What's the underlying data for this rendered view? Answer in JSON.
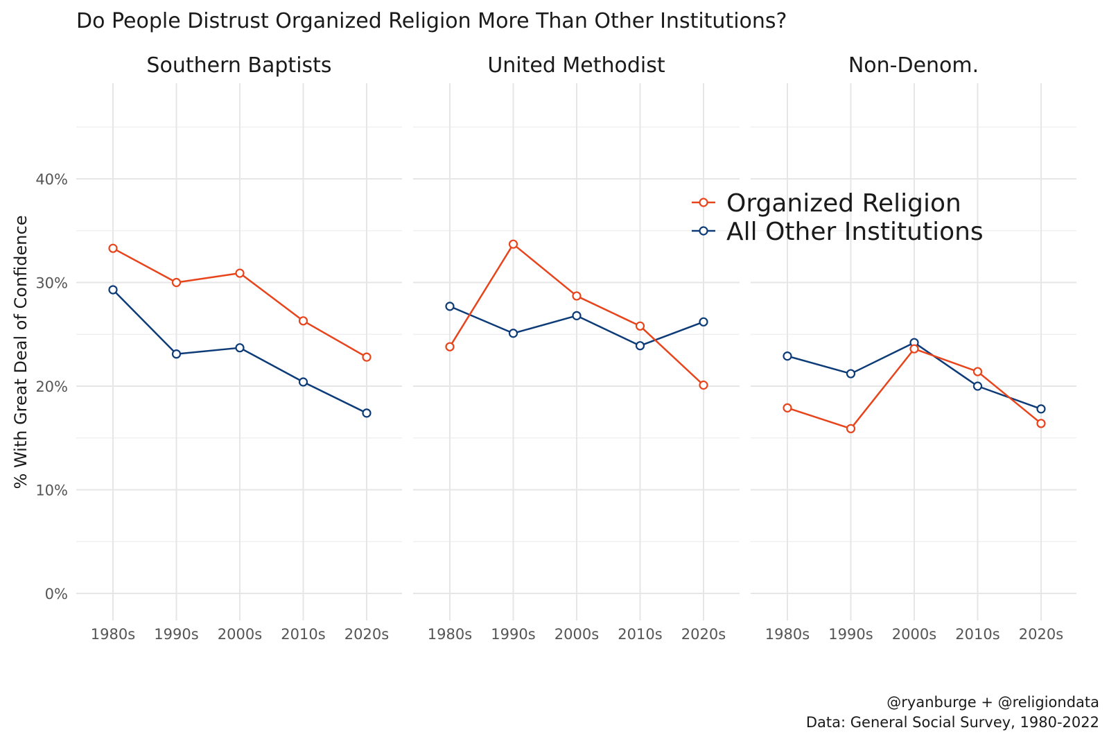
{
  "chart_data": {
    "type": "line",
    "title": "Do People Distrust Organized Religion More Than Other Institutions?",
    "ylabel": "% With Great Deal of Confidence",
    "xlabel": "",
    "ylim": [
      0,
      0.45
    ],
    "yticks": [
      0,
      0.1,
      0.2,
      0.3,
      0.4
    ],
    "ytick_labels": [
      "0%",
      "10%",
      "20%",
      "30%",
      "40%"
    ],
    "categories": [
      "1980s",
      "1990s",
      "2000s",
      "2010s",
      "2020s"
    ],
    "grid": true,
    "legend": {
      "position": "top-right",
      "entries": [
        "Organized Religion",
        "All Other Institutions"
      ]
    },
    "series_colors": {
      "Organized Religion": "#e8441c",
      "All Other Institutions": "#0d3b78"
    },
    "facets": [
      {
        "name": "Southern Baptists",
        "series": [
          {
            "name": "Organized Religion",
            "values": [
              0.333,
              0.3,
              0.309,
              0.263,
              0.228
            ]
          },
          {
            "name": "All Other Institutions",
            "values": [
              0.293,
              0.231,
              0.237,
              0.204,
              0.174
            ]
          }
        ]
      },
      {
        "name": "United Methodist",
        "series": [
          {
            "name": "Organized Religion",
            "values": [
              0.238,
              0.337,
              0.287,
              0.258,
              0.201
            ]
          },
          {
            "name": "All Other Institutions",
            "values": [
              0.277,
              0.251,
              0.268,
              0.239,
              0.262
            ]
          }
        ]
      },
      {
        "name": "Non-Denom.",
        "series": [
          {
            "name": "Organized Religion",
            "values": [
              0.179,
              0.159,
              0.236,
              0.214,
              0.164
            ]
          },
          {
            "name": "All Other Institutions",
            "values": [
              0.229,
              0.212,
              0.242,
              0.2,
              0.178
            ]
          }
        ]
      }
    ],
    "caption": [
      "@ryanburge + @religiondata",
      "Data: General Social Survey, 1980-2022"
    ]
  }
}
